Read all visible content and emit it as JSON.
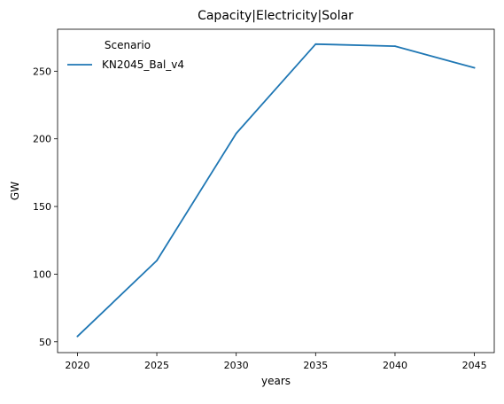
{
  "chart_data": {
    "type": "line",
    "title": "Capacity|Electricity|Solar",
    "xlabel": "years",
    "ylabel": "GW",
    "x": [
      2020,
      2025,
      2030,
      2035,
      2040,
      2045
    ],
    "x_ticks": [
      2020,
      2025,
      2030,
      2035,
      2040,
      2045
    ],
    "y_ticks": [
      50,
      100,
      150,
      200,
      250
    ],
    "xlim": [
      2018.75,
      2046.25
    ],
    "ylim": [
      42,
      281
    ],
    "grid": false,
    "legend": {
      "title": "Scenario",
      "placement": "top-left"
    },
    "series": [
      {
        "name": "KN2045_Bal_v4",
        "color": "#1f77b4",
        "values": [
          54,
          110,
          204,
          270,
          268.5,
          252.5
        ]
      }
    ]
  }
}
